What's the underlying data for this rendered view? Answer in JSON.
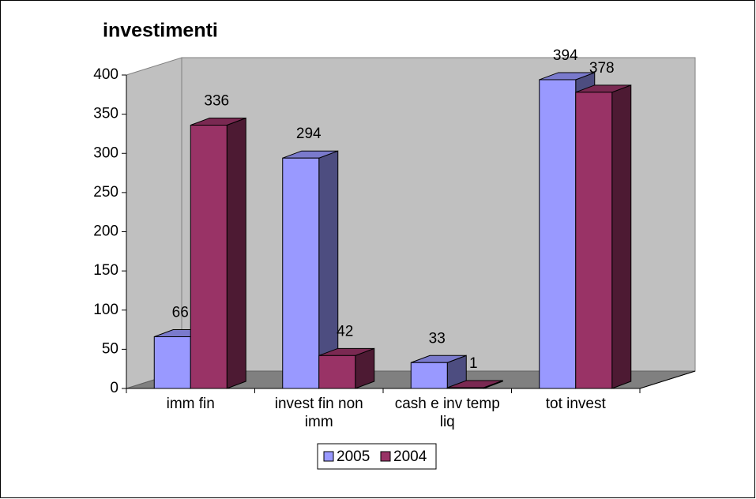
{
  "chart_data": {
    "type": "bar",
    "title": "investimenti",
    "categories": [
      "imm fin",
      "invest fin non imm",
      "cash e inv temp liq",
      "tot invest"
    ],
    "series": [
      {
        "name": "2005",
        "color": "#9999ff",
        "values": [
          66,
          294,
          33,
          394
        ]
      },
      {
        "name": "2004",
        "color": "#993366",
        "values": [
          336,
          42,
          1,
          378
        ]
      }
    ],
    "ylim": [
      0,
      400
    ],
    "yticks": [
      0,
      50,
      100,
      150,
      200,
      250,
      300,
      350,
      400
    ],
    "legend": "bottom"
  }
}
